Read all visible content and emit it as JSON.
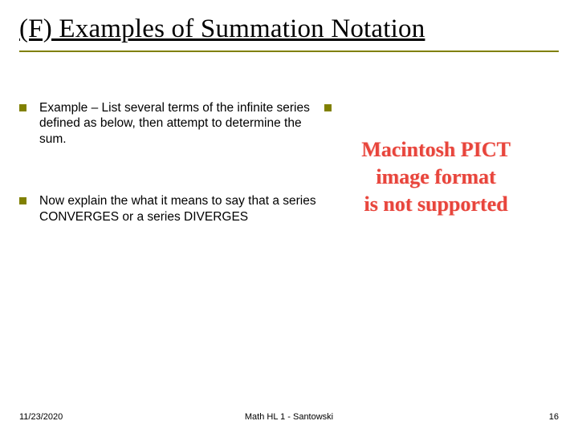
{
  "title": "(F) Examples of Summation Notation",
  "bullets": {
    "left": [
      "Example – List several terms of the infinite series defined as below, then attempt to  determine the sum.",
      "Now explain the what it means to say that a series CONVERGES or a series DIVERGES"
    ]
  },
  "pict_error": {
    "lines": [
      "Macintosh PICT",
      "image format",
      "is not supported"
    ],
    "color": "#e8453c",
    "fontsize": 26
  },
  "footer": {
    "date": "11/23/2020",
    "center": "Math HL 1 - Santowski",
    "page": "16"
  },
  "colors": {
    "accent": "#808000",
    "background": "#ffffff",
    "text": "#000000"
  }
}
